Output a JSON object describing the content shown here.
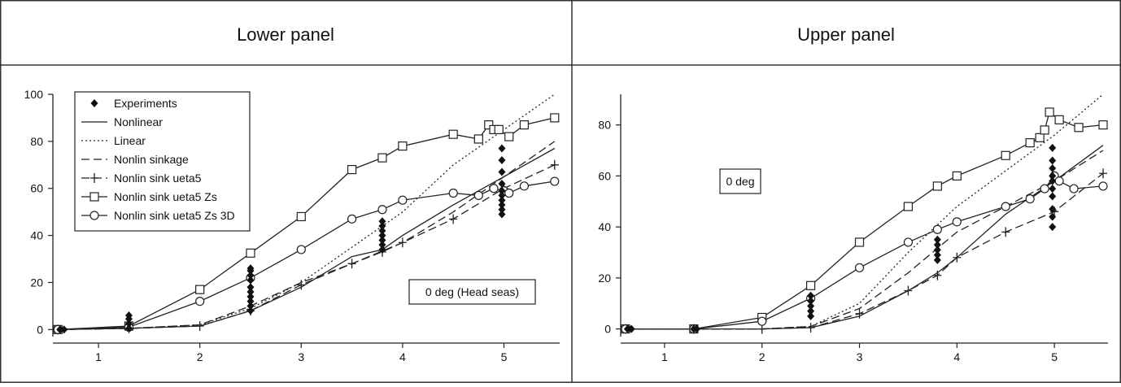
{
  "headers": {
    "lower": "Lower panel",
    "upper": "Upper panel"
  },
  "legend": [
    {
      "label": "Experiments",
      "marker": "diamond",
      "dash": "none"
    },
    {
      "label": "Nonlinear",
      "marker": "none",
      "dash": "solid"
    },
    {
      "label": "Linear",
      "marker": "none",
      "dash": "dotted"
    },
    {
      "label": "Nonlin sinkage",
      "marker": "none",
      "dash": "dashed"
    },
    {
      "label": "Nonlin sink ueta5",
      "marker": "plus",
      "dash": "dashed"
    },
    {
      "label": "Nonlin sink ueta5 Zs",
      "marker": "square",
      "dash": "solid"
    },
    {
      "label": "Nonlin sink ueta5 Zs 3D",
      "marker": "circle",
      "dash": "solid"
    }
  ],
  "chart_data": [
    {
      "type": "line",
      "title": "Lower panel",
      "annotation": "0 deg (Head seas)",
      "xlabel": "",
      "ylabel": "",
      "xlim": [
        0.55,
        5.55
      ],
      "ylim": [
        -3,
        100
      ],
      "xticks": [
        1,
        2,
        3,
        4,
        5
      ],
      "yticks": [
        0,
        20,
        40,
        60,
        80,
        100
      ],
      "legend_position": "top-left",
      "grid": false,
      "experiments": [
        {
          "x": 0.62,
          "y": 0
        },
        {
          "x": 0.66,
          "y": 0
        },
        {
          "x": 1.3,
          "y": 0.5
        },
        {
          "x": 1.3,
          "y": 2.5
        },
        {
          "x": 1.3,
          "y": 4.5
        },
        {
          "x": 1.3,
          "y": 6
        },
        {
          "x": 2.5,
          "y": 8
        },
        {
          "x": 2.5,
          "y": 10
        },
        {
          "x": 2.5,
          "y": 12
        },
        {
          "x": 2.5,
          "y": 14
        },
        {
          "x": 2.5,
          "y": 16
        },
        {
          "x": 2.5,
          "y": 18
        },
        {
          "x": 2.5,
          "y": 21
        },
        {
          "x": 2.5,
          "y": 23
        },
        {
          "x": 2.5,
          "y": 25
        },
        {
          "x": 2.5,
          "y": 26
        },
        {
          "x": 3.8,
          "y": 34
        },
        {
          "x": 3.8,
          "y": 36
        },
        {
          "x": 3.8,
          "y": 38
        },
        {
          "x": 3.8,
          "y": 40
        },
        {
          "x": 3.8,
          "y": 42
        },
        {
          "x": 3.8,
          "y": 44
        },
        {
          "x": 3.8,
          "y": 46
        },
        {
          "x": 4.98,
          "y": 49
        },
        {
          "x": 4.98,
          "y": 51
        },
        {
          "x": 4.98,
          "y": 53
        },
        {
          "x": 4.98,
          "y": 55
        },
        {
          "x": 4.98,
          "y": 57
        },
        {
          "x": 4.98,
          "y": 59
        },
        {
          "x": 4.98,
          "y": 62
        },
        {
          "x": 4.98,
          "y": 67
        },
        {
          "x": 4.98,
          "y": 72
        },
        {
          "x": 4.98,
          "y": 77
        }
      ],
      "series": [
        {
          "name": "Nonlinear",
          "x": [
            0.6,
            1.3,
            2.0,
            2.5,
            3.0,
            3.5,
            3.8,
            4.0,
            4.5,
            5.0,
            5.5
          ],
          "y": [
            0,
            0.5,
            1.5,
            8,
            18,
            31,
            34,
            40,
            53,
            65,
            77
          ]
        },
        {
          "name": "Linear",
          "x": [
            0.6,
            1.3,
            2.0,
            2.5,
            3.0,
            3.5,
            4.0,
            4.5,
            5.0,
            5.5
          ],
          "y": [
            0,
            0.5,
            2,
            9,
            20,
            35,
            50,
            70,
            85,
            100
          ]
        },
        {
          "name": "Nonlin sinkage",
          "x": [
            0.6,
            1.3,
            2.0,
            2.5,
            3.0,
            3.5,
            4.0,
            4.5,
            5.0,
            5.5
          ],
          "y": [
            0,
            0.5,
            2,
            10,
            20,
            28,
            37,
            50,
            65,
            80
          ]
        },
        {
          "name": "Nonlin sink ueta5",
          "x": [
            0.6,
            1.3,
            2.0,
            2.5,
            3.0,
            3.5,
            3.8,
            4.0,
            4.5,
            5.0,
            5.5
          ],
          "y": [
            0,
            0.5,
            1.5,
            8,
            19,
            28,
            33,
            37,
            47,
            60,
            70
          ]
        },
        {
          "name": "Nonlin sink ueta5 Zs",
          "x": [
            0.6,
            1.3,
            2.0,
            2.5,
            3.0,
            3.5,
            3.8,
            4.0,
            4.5,
            4.75,
            4.85,
            4.9,
            4.95,
            5.05,
            5.2,
            5.5
          ],
          "y": [
            0,
            1.5,
            17,
            32.5,
            48,
            68,
            73,
            78,
            83,
            81,
            87,
            85,
            85,
            82,
            87,
            90
          ]
        },
        {
          "name": "Nonlin sink ueta5 Zs 3D",
          "x": [
            0.6,
            1.3,
            2.0,
            2.5,
            3.0,
            3.5,
            3.8,
            4.0,
            4.5,
            4.75,
            4.9,
            5.0,
            5.05,
            5.2,
            5.5
          ],
          "y": [
            0,
            1,
            12,
            22,
            34,
            47,
            51,
            55,
            58,
            57,
            60,
            59,
            58,
            61,
            63
          ]
        }
      ]
    },
    {
      "type": "line",
      "title": "Upper panel",
      "annotation": "0 deg",
      "xlabel": "",
      "ylabel": "",
      "xlim": [
        0.55,
        5.55
      ],
      "ylim": [
        -3,
        92
      ],
      "xticks": [
        1,
        2,
        3,
        4,
        5
      ],
      "yticks": [
        0,
        20,
        40,
        60,
        80
      ],
      "grid": false,
      "experiments": [
        {
          "x": 0.62,
          "y": 0
        },
        {
          "x": 0.66,
          "y": 0
        },
        {
          "x": 1.3,
          "y": 0
        },
        {
          "x": 1.33,
          "y": 0
        },
        {
          "x": 2.5,
          "y": 5
        },
        {
          "x": 2.5,
          "y": 7
        },
        {
          "x": 2.5,
          "y": 9
        },
        {
          "x": 2.5,
          "y": 11
        },
        {
          "x": 2.5,
          "y": 13
        },
        {
          "x": 3.8,
          "y": 27
        },
        {
          "x": 3.8,
          "y": 29
        },
        {
          "x": 3.8,
          "y": 31
        },
        {
          "x": 3.8,
          "y": 33
        },
        {
          "x": 3.8,
          "y": 35
        },
        {
          "x": 4.98,
          "y": 40
        },
        {
          "x": 4.98,
          "y": 44
        },
        {
          "x": 4.98,
          "y": 47
        },
        {
          "x": 4.98,
          "y": 52
        },
        {
          "x": 4.98,
          "y": 55
        },
        {
          "x": 4.98,
          "y": 58
        },
        {
          "x": 4.98,
          "y": 60
        },
        {
          "x": 4.98,
          "y": 63
        },
        {
          "x": 4.98,
          "y": 66
        },
        {
          "x": 4.98,
          "y": 71
        }
      ],
      "series": [
        {
          "name": "Nonlinear",
          "x": [
            0.6,
            1.3,
            2.0,
            2.5,
            3.0,
            3.5,
            3.8,
            4.0,
            4.5,
            5.0,
            5.5
          ],
          "y": [
            0,
            0,
            0,
            0.5,
            5,
            15,
            22,
            28,
            45,
            58,
            72
          ]
        },
        {
          "name": "Linear",
          "x": [
            0.6,
            1.3,
            2.0,
            2.5,
            3.0,
            3.5,
            4.0,
            4.5,
            5.0,
            5.5
          ],
          "y": [
            0,
            0,
            0,
            1,
            10,
            30,
            48,
            62,
            76,
            92
          ]
        },
        {
          "name": "Nonlin sinkage",
          "x": [
            0.6,
            1.3,
            2.0,
            2.5,
            3.0,
            3.5,
            4.0,
            4.5,
            5.0,
            5.5
          ],
          "y": [
            0,
            0,
            0,
            1,
            8,
            22,
            38,
            48,
            58,
            70
          ]
        },
        {
          "name": "Nonlin sink ueta5",
          "x": [
            0.6,
            1.3,
            2.0,
            2.5,
            3.0,
            3.5,
            3.8,
            4.0,
            4.5,
            5.0,
            5.5
          ],
          "y": [
            0,
            0,
            0,
            0.5,
            6,
            15,
            21,
            28,
            38,
            46,
            61
          ]
        },
        {
          "name": "Nonlin sink ueta5 Zs",
          "x": [
            0.6,
            1.3,
            2.0,
            2.5,
            3.0,
            3.5,
            3.8,
            4.0,
            4.5,
            4.75,
            4.85,
            4.9,
            4.95,
            5.05,
            5.25,
            5.5
          ],
          "y": [
            0,
            0,
            4.5,
            17,
            34,
            48,
            56,
            60,
            68,
            73,
            75,
            78,
            85,
            82,
            79,
            80
          ]
        },
        {
          "name": "Nonlin sink ueta5 Zs 3D",
          "x": [
            0.6,
            1.3,
            2.0,
            2.5,
            3.0,
            3.5,
            3.8,
            4.0,
            4.5,
            4.75,
            4.9,
            5.0,
            5.05,
            5.2,
            5.5
          ],
          "y": [
            0,
            0,
            3,
            12,
            24,
            34,
            39,
            42,
            48,
            51,
            55,
            60,
            58,
            55,
            56
          ]
        }
      ]
    }
  ]
}
